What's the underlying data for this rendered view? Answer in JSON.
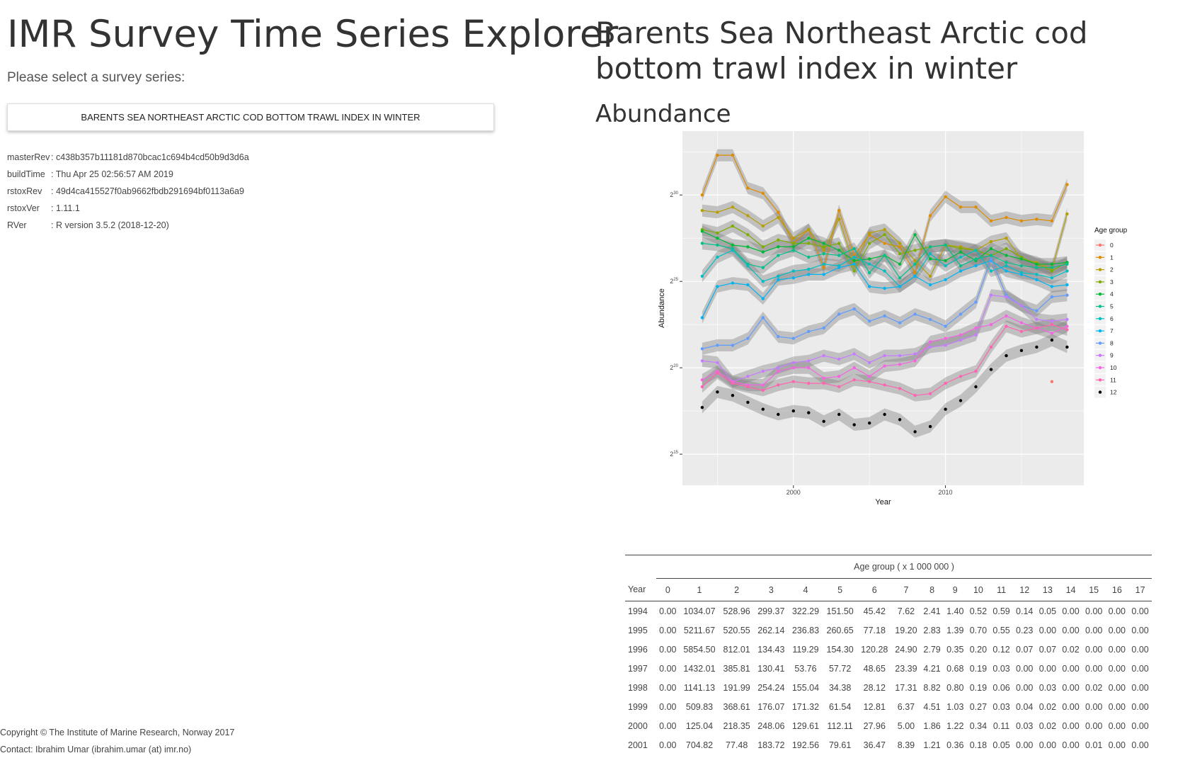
{
  "app": {
    "title": "IMR Survey Time Series Explorer",
    "select_label": "Please select a survey series:",
    "selected_survey": "BARENTS SEA NORTHEAST ARCTIC COD BOTTOM TRAWL INDEX IN WINTER"
  },
  "meta": [
    {
      "key": "masterRev",
      "sep": ": ",
      "value": "c438b357b11181d870bcac1c694b4cd50b9d3d6a"
    },
    {
      "key": "buildTime",
      "sep": ": ",
      "value": "Thu Apr 25 02:56:57 AM 2019"
    },
    {
      "key": "rstoxRev",
      "sep": ": ",
      "value": "49d4ca415527f0ab9662fbdb291694bf0113a6a9"
    },
    {
      "key": "rstoxVer",
      "sep": ": ",
      "value": "1.11.1"
    },
    {
      "key": "RVer",
      "sep": ": ",
      "value": "R version 3.5.2 (2018-12-20)"
    }
  ],
  "footer": {
    "copyright": "Copyright © The Institute of Marine Research, Norway 2017",
    "contact": "Contact: Ibrahim Umar (ibrahim.umar (at) imr.no)"
  },
  "series_title": "Barents Sea Northeast Arctic cod bottom trawl index in winter",
  "section_heading": "Abundance",
  "colors": {
    "panel": "#ebebeb",
    "grid": "#ffffff",
    "ribbon": "#7f7f7f",
    "series": [
      "#F8766D",
      "#DE8C00",
      "#B79F00",
      "#7CAE00",
      "#00BA38",
      "#00C08B",
      "#00BFC4",
      "#00B4F0",
      "#619CFF",
      "#C77CFF",
      "#F564E3",
      "#FF64B0"
    ]
  },
  "chart_data": {
    "type": "line",
    "xlabel": "Year",
    "ylabel": "Abundance",
    "y_scale": "log2",
    "y_ticks": [
      15,
      20,
      25,
      30
    ],
    "y_tick_base": "2",
    "x_ticks": [
      2000,
      2010
    ],
    "grid": true,
    "legend_title": "Age group",
    "legend_position": "right",
    "x": [
      1994,
      1995,
      1996,
      1997,
      1998,
      1999,
      2000,
      2001,
      2002,
      2003,
      2004,
      2005,
      2006,
      2007,
      2008,
      2009,
      2010,
      2011,
      2012,
      2013,
      2014,
      2015,
      2016,
      2017,
      2018
    ],
    "series": [
      {
        "name": "0",
        "values": [
          null,
          null,
          null,
          null,
          null,
          null,
          null,
          null,
          null,
          null,
          null,
          null,
          null,
          null,
          null,
          null,
          null,
          null,
          null,
          null,
          null,
          null,
          null,
          19.2,
          null
        ]
      },
      {
        "name": "1",
        "values": [
          30.0,
          32.3,
          32.3,
          30.4,
          30.1,
          29.0,
          27.2,
          28.0,
          25.8,
          29.1,
          26.5,
          27.7,
          27.2,
          27.0,
          25.5,
          28.8,
          29.9,
          29.3,
          29.3,
          28.5,
          28.7,
          28.5,
          28.6,
          28.5,
          30.6
        ]
      },
      {
        "name": "2",
        "values": [
          29.1,
          29.0,
          29.3,
          28.8,
          28.2,
          28.7,
          27.5,
          28.0,
          26.8,
          28.6,
          25.9,
          27.8,
          28.0,
          27.2,
          26.2,
          25.3,
          27.1,
          27.0,
          26.8,
          27.3,
          27.5,
          26.3,
          26.1,
          25.7,
          28.9
        ]
      },
      {
        "name": "3",
        "values": [
          28.0,
          27.8,
          28.2,
          27.7,
          27.0,
          27.4,
          27.2,
          27.2,
          27.0,
          27.2,
          25.6,
          27.2,
          27.7,
          26.6,
          26.8,
          27.0,
          27.1,
          26.9,
          26.8,
          26.5,
          26.9,
          26.4,
          26.0,
          25.6,
          26.1
        ]
      },
      {
        "name": "4",
        "values": [
          27.9,
          27.5,
          27.1,
          27.0,
          26.7,
          27.0,
          27.0,
          27.5,
          27.2,
          26.8,
          26.2,
          26.3,
          26.5,
          26.0,
          27.7,
          26.3,
          26.2,
          26.7,
          26.2,
          26.9,
          26.5,
          26.3,
          26.0,
          26.0,
          26.1
        ]
      },
      {
        "name": "5",
        "values": [
          27.2,
          27.1,
          26.9,
          26.0,
          25.8,
          26.5,
          26.8,
          26.4,
          26.6,
          26.5,
          26.9,
          25.5,
          26.5,
          25.2,
          26.0,
          27.0,
          27.1,
          25.9,
          26.3,
          26.5,
          26.1,
          25.9,
          25.8,
          25.8,
          26.0
        ]
      },
      {
        "name": "6",
        "values": [
          25.3,
          26.4,
          26.8,
          25.9,
          25.0,
          25.3,
          25.6,
          25.7,
          26.0,
          25.9,
          26.4,
          26.0,
          25.6,
          24.7,
          25.3,
          26.6,
          25.9,
          26.4,
          26.8,
          25.6,
          25.9,
          25.5,
          25.4,
          25.2,
          25.6
        ]
      },
      {
        "name": "7",
        "values": [
          22.9,
          24.7,
          24.9,
          24.8,
          24.0,
          25.1,
          25.2,
          25.4,
          25.4,
          25.8,
          26.0,
          24.7,
          24.6,
          24.7,
          25.3,
          24.8,
          25.1,
          25.6,
          25.9,
          26.2,
          25.6,
          25.4,
          25.1,
          24.7,
          24.8
        ]
      },
      {
        "name": "8",
        "values": [
          21.1,
          21.3,
          21.3,
          21.7,
          22.9,
          21.8,
          21.7,
          22.1,
          22.3,
          23.1,
          23.4,
          22.7,
          23.0,
          22.6,
          23.1,
          22.8,
          22.4,
          23.1,
          23.8,
          26.3,
          24.2,
          23.6,
          23.3,
          24.1,
          24.2
        ]
      },
      {
        "name": "9",
        "values": [
          20.4,
          20.3,
          19.2,
          19.5,
          19.8,
          20.0,
          20.3,
          20.4,
          20.7,
          20.5,
          20.8,
          20.3,
          20.7,
          20.7,
          20.8,
          21.2,
          21.3,
          21.6,
          21.9,
          24.2,
          24.1,
          23.6,
          22.8,
          22.7,
          22.8
        ]
      },
      {
        "name": "10",
        "values": [
          19.3,
          19.8,
          19.2,
          19.0,
          19.0,
          19.8,
          20.0,
          20.0,
          19.4,
          19.5,
          20.0,
          19.5,
          20.1,
          20.2,
          20.4,
          21.5,
          21.7,
          21.9,
          22.3,
          22.5,
          23.0,
          22.6,
          22.3,
          22.0,
          22.4
        ]
      },
      {
        "name": "11",
        "values": [
          18.9,
          19.7,
          19.1,
          18.9,
          18.7,
          19.0,
          19.2,
          19.1,
          19.1,
          18.9,
          19.3,
          19.2,
          19.0,
          18.8,
          18.4,
          18.5,
          19.1,
          19.5,
          19.8,
          21.2,
          22.4,
          22.1,
          22.3,
          22.5,
          22.2
        ]
      },
      {
        "name": "12",
        "values": [
          17.7,
          18.6,
          18.4,
          18.0,
          17.6,
          17.3,
          17.5,
          17.4,
          16.9,
          17.3,
          16.7,
          16.8,
          17.3,
          17.0,
          16.3,
          16.6,
          17.6,
          18.1,
          18.9,
          19.9,
          20.7,
          21.0,
          21.2,
          21.6,
          21.2
        ]
      }
    ]
  },
  "table": {
    "spanner": "Age group ( x 1 000 000 )",
    "columns": [
      "Year",
      "0",
      "1",
      "2",
      "3",
      "4",
      "5",
      "6",
      "7",
      "8",
      "9",
      "10",
      "11",
      "12",
      "13",
      "14",
      "15",
      "16",
      "17"
    ],
    "rows": [
      [
        "1994",
        "0.00",
        "1034.07",
        "528.96",
        "299.37",
        "322.29",
        "151.50",
        "45.42",
        "7.62",
        "2.41",
        "1.40",
        "0.52",
        "0.59",
        "0.14",
        "0.05",
        "0.00",
        "0.00",
        "0.00",
        "0.00"
      ],
      [
        "1995",
        "0.00",
        "5211.67",
        "520.55",
        "262.14",
        "236.83",
        "260.65",
        "77.18",
        "19.20",
        "2.83",
        "1.39",
        "0.70",
        "0.55",
        "0.23",
        "0.00",
        "0.00",
        "0.00",
        "0.00",
        "0.00"
      ],
      [
        "1996",
        "0.00",
        "5854.50",
        "812.01",
        "134.43",
        "119.29",
        "154.30",
        "120.28",
        "24.90",
        "2.79",
        "0.35",
        "0.20",
        "0.12",
        "0.07",
        "0.07",
        "0.02",
        "0.00",
        "0.00",
        "0.00"
      ],
      [
        "1997",
        "0.00",
        "1432.01",
        "385.81",
        "130.41",
        "53.76",
        "57.72",
        "48.65",
        "23.39",
        "4.21",
        "0.68",
        "0.19",
        "0.03",
        "0.00",
        "0.00",
        "0.00",
        "0.00",
        "0.00",
        "0.00"
      ],
      [
        "1998",
        "0.00",
        "1141.13",
        "191.99",
        "254.24",
        "155.04",
        "34.38",
        "28.12",
        "17.31",
        "8.82",
        "0.80",
        "0.19",
        "0.06",
        "0.00",
        "0.03",
        "0.00",
        "0.02",
        "0.00",
        "0.00"
      ],
      [
        "1999",
        "0.00",
        "509.83",
        "368.61",
        "176.07",
        "171.32",
        "61.54",
        "12.81",
        "6.37",
        "4.51",
        "1.03",
        "0.27",
        "0.03",
        "0.04",
        "0.02",
        "0.00",
        "0.00",
        "0.00",
        "0.00"
      ],
      [
        "2000",
        "0.00",
        "125.04",
        "218.35",
        "248.06",
        "129.61",
        "112.11",
        "27.96",
        "5.00",
        "1.86",
        "1.22",
        "0.34",
        "0.11",
        "0.03",
        "0.02",
        "0.00",
        "0.00",
        "0.00",
        "0.00"
      ],
      [
        "2001",
        "0.00",
        "704.82",
        "77.48",
        "183.72",
        "192.56",
        "79.61",
        "36.47",
        "8.39",
        "1.21",
        "0.36",
        "0.18",
        "0.05",
        "0.00",
        "0.00",
        "0.00",
        "0.01",
        "0.00",
        "0.00"
      ]
    ]
  }
}
